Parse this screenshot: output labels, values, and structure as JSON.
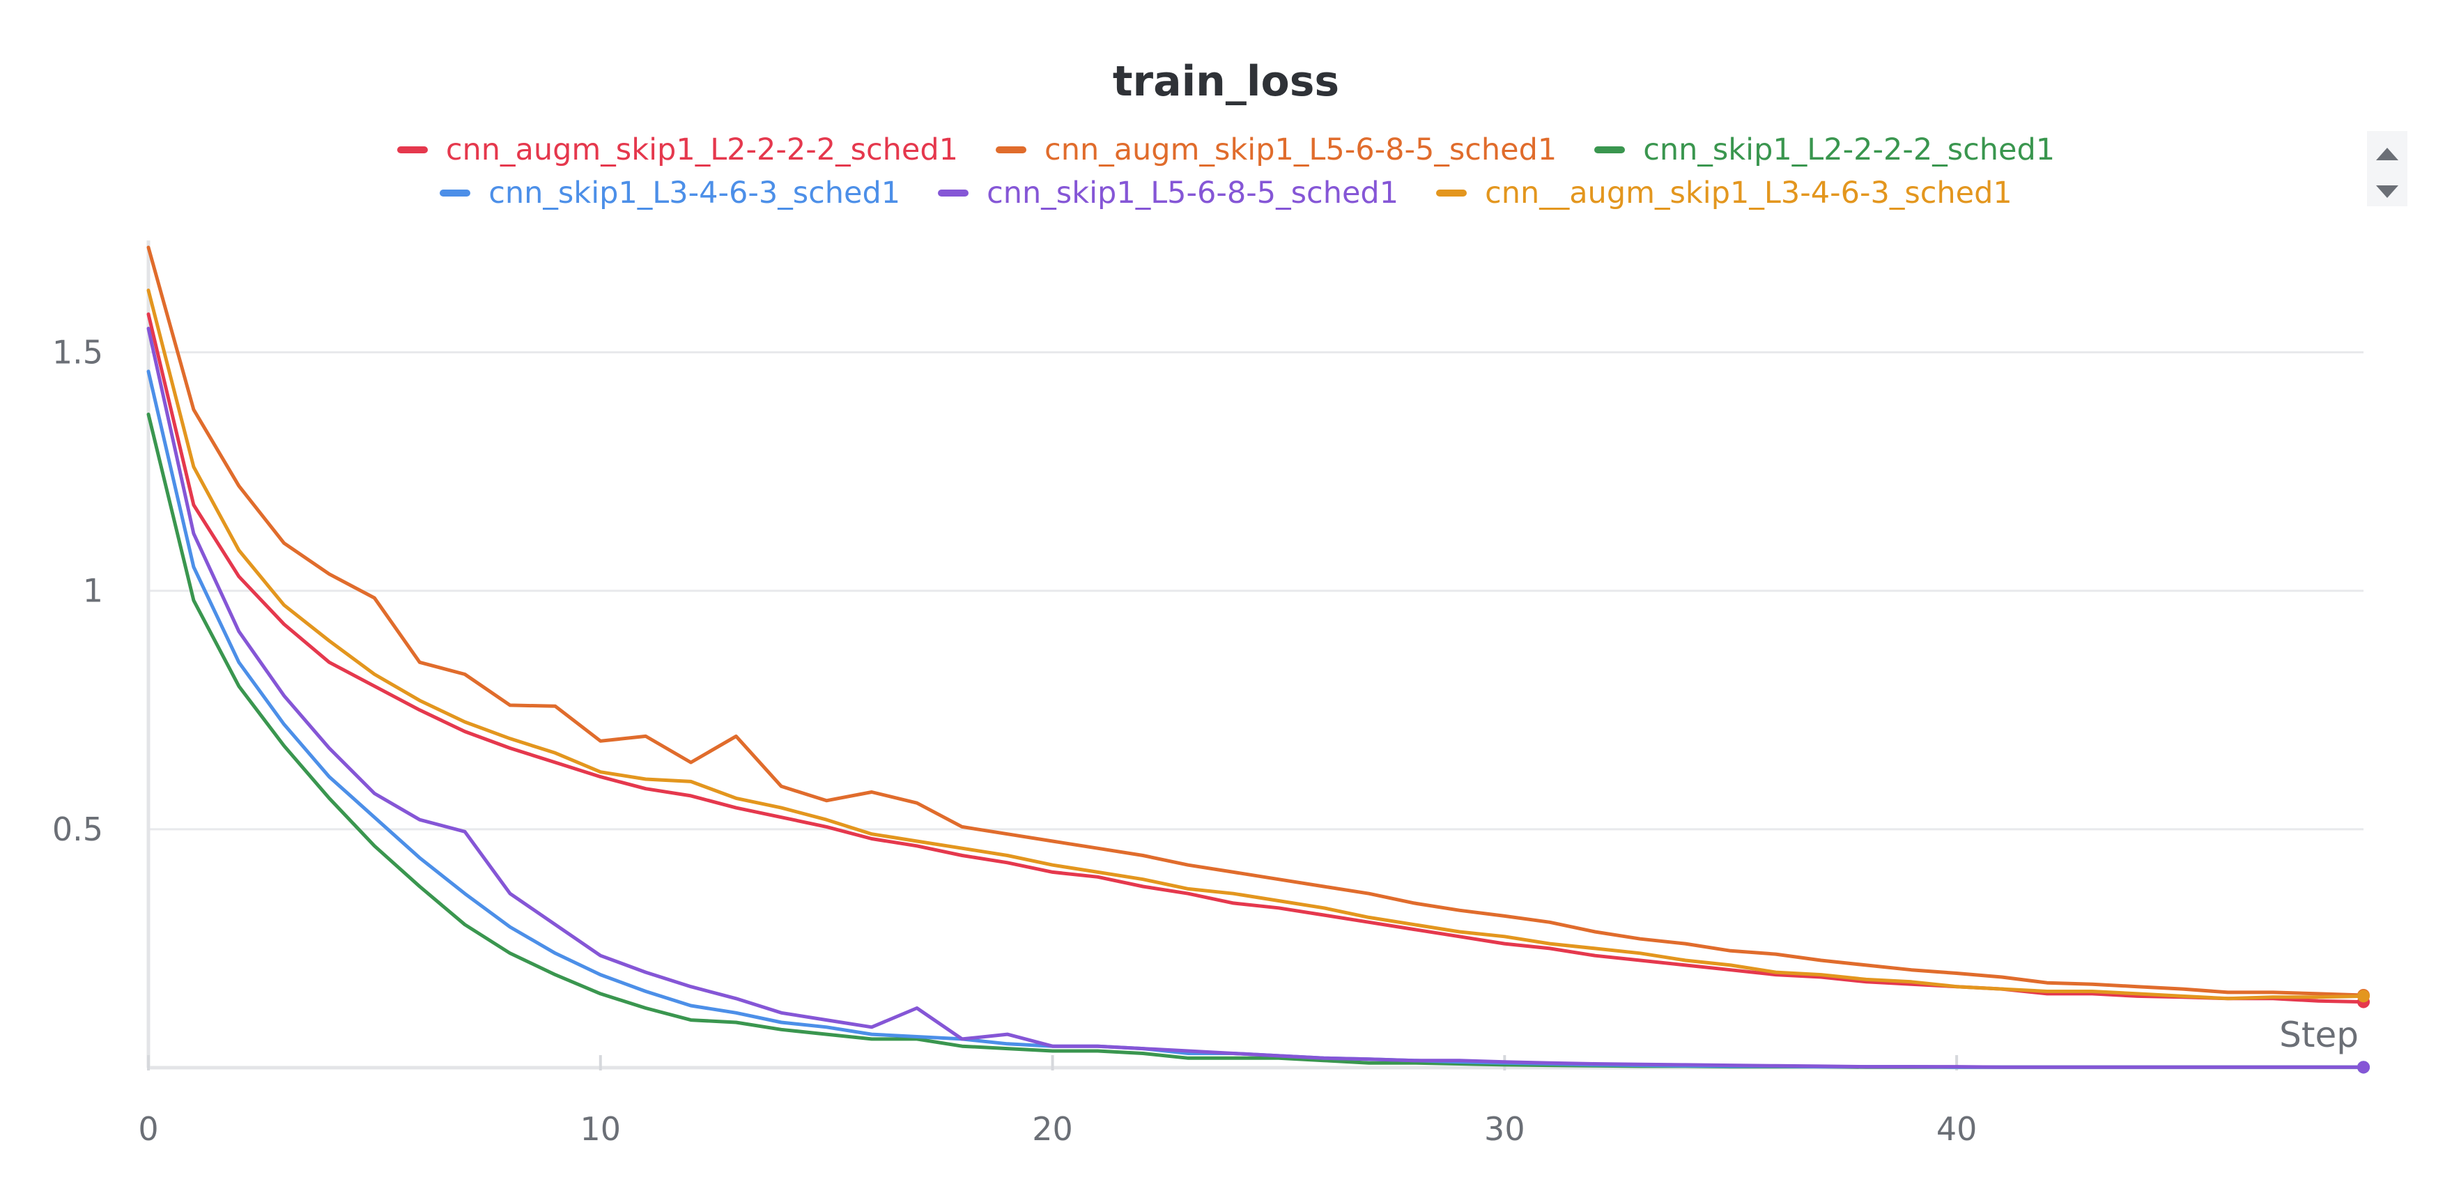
{
  "chart_data": {
    "type": "line",
    "title": "train_loss",
    "xlabel": "Step",
    "ylabel": "",
    "xlim": [
      0,
      49
    ],
    "ylim": [
      0,
      1.72
    ],
    "xticks": [
      0,
      10,
      20,
      30,
      40
    ],
    "yticks": [
      0.5,
      1,
      1.5
    ],
    "ytick_labels": [
      "0.5",
      "1",
      "1.5"
    ],
    "grid": true,
    "legend_position": "top",
    "series": [
      {
        "name": "cnn_augm_skip1_L2-2-2-2_sched1",
        "color": "#e5384d",
        "values": [
          1.58,
          1.18,
          1.03,
          0.93,
          0.85,
          0.8,
          0.75,
          0.705,
          0.67,
          0.64,
          0.61,
          0.585,
          0.57,
          0.545,
          0.525,
          0.505,
          0.48,
          0.465,
          0.445,
          0.43,
          0.41,
          0.4,
          0.38,
          0.365,
          0.345,
          0.335,
          0.32,
          0.305,
          0.29,
          0.275,
          0.26,
          0.25,
          0.235,
          0.225,
          0.215,
          0.205,
          0.195,
          0.19,
          0.18,
          0.175,
          0.17,
          0.165,
          0.155,
          0.155,
          0.15,
          0.148,
          0.145,
          0.145,
          0.14,
          0.138
        ]
      },
      {
        "name": "cnn_augm_skip1_L5-6-8-5_sched1",
        "color": "#e06c2c",
        "values": [
          1.72,
          1.38,
          1.22,
          1.1,
          1.035,
          0.985,
          0.85,
          0.825,
          0.76,
          0.758,
          0.685,
          0.695,
          0.64,
          0.695,
          0.59,
          0.56,
          0.578,
          0.555,
          0.505,
          0.49,
          0.475,
          0.46,
          0.445,
          0.425,
          0.41,
          0.395,
          0.38,
          0.365,
          0.345,
          0.33,
          0.318,
          0.305,
          0.285,
          0.27,
          0.26,
          0.245,
          0.238,
          0.225,
          0.215,
          0.205,
          0.198,
          0.19,
          0.178,
          0.175,
          0.17,
          0.165,
          0.158,
          0.158,
          0.155,
          0.152
        ]
      },
      {
        "name": "cnn_skip1_L2-2-2-2_sched1",
        "color": "#3a964f",
        "values": [
          1.37,
          0.98,
          0.8,
          0.675,
          0.565,
          0.465,
          0.38,
          0.3,
          0.24,
          0.195,
          0.155,
          0.125,
          0.1,
          0.095,
          0.08,
          0.07,
          0.06,
          0.06,
          0.045,
          0.04,
          0.035,
          0.035,
          0.03,
          0.02,
          0.02,
          0.02,
          0.015,
          0.01,
          0.01,
          0.008,
          0.006,
          0.005,
          0.004,
          0.003,
          0.003,
          0.002,
          0.002,
          0.002,
          0.001,
          0.001,
          0.001,
          0.001,
          0.001,
          0.001,
          0.001,
          0.001,
          0.001,
          0.001,
          0.001,
          0.001
        ]
      },
      {
        "name": "cnn_skip1_L3-4-6-3_sched1",
        "color": "#4c8fe8",
        "values": [
          1.46,
          1.05,
          0.85,
          0.72,
          0.61,
          0.525,
          0.44,
          0.365,
          0.295,
          0.24,
          0.195,
          0.16,
          0.13,
          0.115,
          0.095,
          0.085,
          0.07,
          0.065,
          0.06,
          0.05,
          0.045,
          0.045,
          0.04,
          0.03,
          0.03,
          0.025,
          0.02,
          0.018,
          0.015,
          0.012,
          0.01,
          0.008,
          0.006,
          0.005,
          0.004,
          0.003,
          0.003,
          0.002,
          0.002,
          0.002,
          0.001,
          0.001,
          0.001,
          0.001,
          0.001,
          0.001,
          0.001,
          0.001,
          0.001,
          0.001
        ]
      },
      {
        "name": "cnn_skip1_L5-6-8-5_sched1",
        "color": "#8556d6",
        "values": [
          1.55,
          1.12,
          0.915,
          0.78,
          0.67,
          0.575,
          0.52,
          0.495,
          0.365,
          0.3,
          0.235,
          0.2,
          0.17,
          0.145,
          0.115,
          0.1,
          0.085,
          0.125,
          0.06,
          0.07,
          0.045,
          0.045,
          0.04,
          0.035,
          0.03,
          0.025,
          0.02,
          0.018,
          0.015,
          0.015,
          0.012,
          0.01,
          0.008,
          0.007,
          0.006,
          0.005,
          0.004,
          0.003,
          0.002,
          0.002,
          0.002,
          0.001,
          0.001,
          0.001,
          0.001,
          0.001,
          0.001,
          0.001,
          0.001,
          0.001
        ]
      },
      {
        "name": "cnn__augm_skip1_L3-4-6-3_sched1",
        "color": "#e3961e",
        "values": [
          1.63,
          1.26,
          1.085,
          0.97,
          0.895,
          0.825,
          0.77,
          0.725,
          0.69,
          0.66,
          0.62,
          0.605,
          0.6,
          0.565,
          0.545,
          0.52,
          0.49,
          0.475,
          0.46,
          0.445,
          0.425,
          0.41,
          0.395,
          0.375,
          0.365,
          0.35,
          0.335,
          0.315,
          0.3,
          0.285,
          0.275,
          0.26,
          0.25,
          0.24,
          0.225,
          0.215,
          0.2,
          0.195,
          0.185,
          0.18,
          0.17,
          0.165,
          0.16,
          0.16,
          0.155,
          0.15,
          0.145,
          0.148,
          0.148,
          0.15
        ]
      }
    ]
  }
}
